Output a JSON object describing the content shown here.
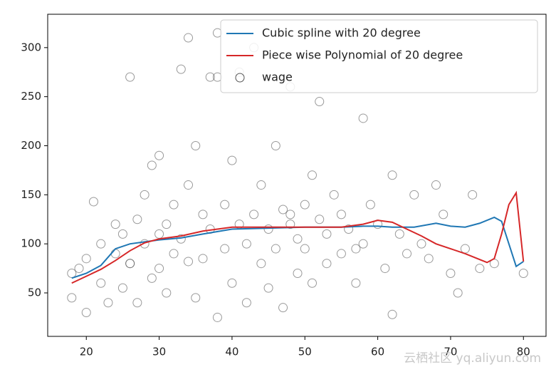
{
  "chart_data": {
    "type": "line",
    "xlim": [
      14.7,
      83.1
    ],
    "ylim": [
      5.7,
      334
    ],
    "xticks": [
      20,
      30,
      40,
      50,
      60,
      70,
      80
    ],
    "yticks": [
      50,
      100,
      150,
      200,
      250,
      300
    ],
    "grid": false,
    "legend": "upper right",
    "watermark": "云栖社区 yq.aliyun.com",
    "series": [
      {
        "name": "Cubic spline with 20 degree",
        "style": "line",
        "color": "#1f77b4",
        "x": [
          18,
          20,
          22,
          24,
          26,
          28,
          30,
          33,
          36,
          40,
          45,
          50,
          55,
          58,
          60,
          62,
          65,
          68,
          70,
          72,
          74,
          76,
          77,
          78,
          79,
          80
        ],
        "y": [
          65,
          70,
          78,
          95,
          100,
          102,
          104,
          106,
          110,
          115,
          116,
          117,
          117,
          118,
          118,
          117,
          117,
          121,
          118,
          117,
          121,
          127,
          123,
          100,
          77,
          82
        ]
      },
      {
        "name": "Piece wise Polynomial of 20 degree",
        "style": "line",
        "color": "#d62728",
        "x": [
          18,
          20,
          22,
          24,
          26,
          28,
          30,
          33,
          36,
          40,
          45,
          50,
          55,
          58,
          60,
          62,
          64,
          66,
          68,
          70,
          72,
          74,
          75,
          76,
          77,
          78,
          79,
          80
        ],
        "y": [
          60,
          67,
          74,
          83,
          93,
          101,
          105,
          108,
          113,
          117,
          117,
          117,
          117,
          120,
          124,
          122,
          115,
          108,
          100,
          95,
          90,
          84,
          81,
          85,
          110,
          140,
          152,
          82
        ]
      },
      {
        "name": "wage",
        "style": "marker",
        "color": "#555555",
        "x": [
          18,
          18,
          19,
          20,
          20,
          21,
          22,
          22,
          23,
          24,
          24,
          25,
          25,
          26,
          26,
          27,
          27,
          28,
          28,
          29,
          29,
          30,
          30,
          30,
          31,
          31,
          32,
          32,
          33,
          33,
          34,
          34,
          35,
          35,
          36,
          36,
          37,
          37,
          38,
          38,
          39,
          39,
          40,
          40,
          41,
          41,
          42,
          42,
          43,
          43,
          44,
          44,
          45,
          45,
          46,
          46,
          47,
          47,
          48,
          48,
          49,
          49,
          50,
          50,
          51,
          51,
          52,
          52,
          53,
          53,
          54,
          55,
          55,
          56,
          57,
          58,
          58,
          59,
          60,
          61,
          62,
          62,
          63,
          64,
          65,
          66,
          67,
          68,
          69,
          70,
          71,
          72,
          73,
          74,
          76,
          80,
          26,
          34,
          38,
          48,
          57
        ],
        "y": [
          70,
          45,
          75,
          85,
          30,
          143,
          100,
          60,
          40,
          120,
          90,
          55,
          110,
          80,
          270,
          125,
          40,
          100,
          150,
          65,
          180,
          110,
          75,
          190,
          120,
          50,
          140,
          90,
          278,
          105,
          310,
          160,
          45,
          200,
          130,
          85,
          270,
          115,
          315,
          25,
          140,
          95,
          185,
          60,
          275,
          120,
          100,
          40,
          130,
          300,
          80,
          160,
          115,
          55,
          200,
          95,
          135,
          35,
          120,
          260,
          105,
          70,
          140,
          95,
          170,
          60,
          125,
          245,
          110,
          80,
          150,
          90,
          130,
          115,
          60,
          228,
          100,
          140,
          120,
          75,
          170,
          28,
          110,
          90,
          150,
          100,
          85,
          160,
          130,
          70,
          50,
          95,
          150,
          75,
          80,
          70,
          80,
          82,
          270,
          130,
          95
        ]
      }
    ]
  }
}
